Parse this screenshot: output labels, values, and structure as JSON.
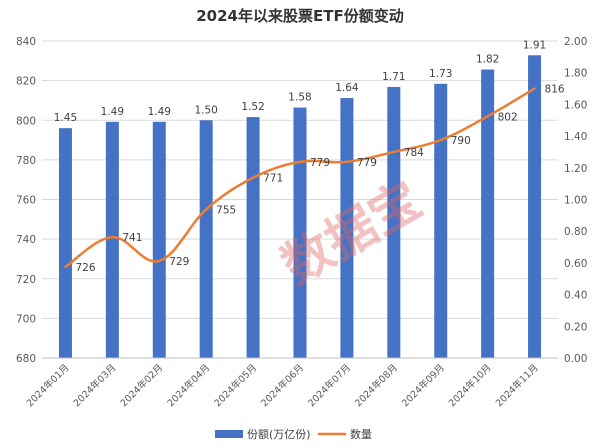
{
  "chart_data": {
    "type": "bar",
    "title": "2024年以来股票ETF份额变动",
    "categories": [
      "2024年01月",
      "2024年03月",
      "2024年02月",
      "2024年04月",
      "2024年05月",
      "2024年06月",
      "2024年07月",
      "2024年08月",
      "2024年09月",
      "2024年10月",
      "2024年11月"
    ],
    "series": [
      {
        "name": "份额(万亿份)",
        "type": "bar",
        "axis": "right",
        "color": "#4472c4",
        "values": [
          1.45,
          1.49,
          1.49,
          1.5,
          1.52,
          1.58,
          1.64,
          1.71,
          1.73,
          1.82,
          1.91
        ],
        "labels": [
          "1.45",
          "1.49",
          "1.49",
          "1.50",
          "1.52",
          "1.58",
          "1.64",
          "1.71",
          "1.73",
          "1.82",
          "1.91"
        ]
      },
      {
        "name": "数量",
        "type": "line",
        "axis": "left",
        "color": "#ed7d31",
        "values": [
          726,
          741,
          729,
          755,
          771,
          779,
          779,
          784,
          790,
          802,
          816
        ]
      }
    ],
    "y_left": {
      "range": [
        680,
        840
      ],
      "ticks": [
        "680",
        "700",
        "720",
        "740",
        "760",
        "780",
        "800",
        "820",
        "840"
      ]
    },
    "y_right": {
      "range": [
        0,
        2
      ],
      "ticks": [
        "0.00",
        "0.20",
        "0.40",
        "0.60",
        "0.80",
        "1.00",
        "1.20",
        "1.40",
        "1.60",
        "1.80",
        "2.00"
      ]
    },
    "grid": true,
    "legend_position": "bottom"
  },
  "watermark": "数据宝"
}
